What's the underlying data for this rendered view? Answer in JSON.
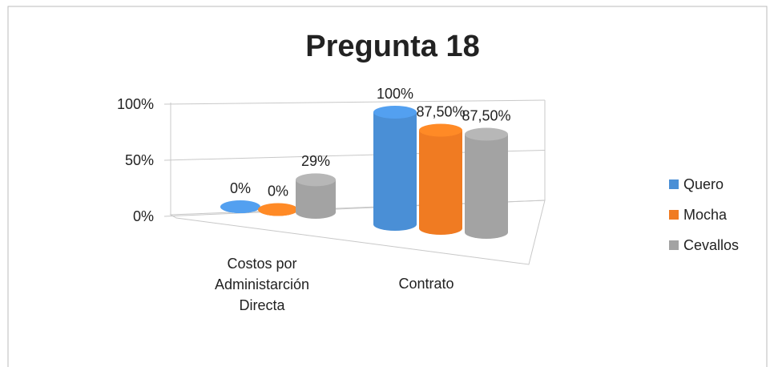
{
  "chart_data": {
    "type": "bar3d",
    "title": "Pregunta 18",
    "categories": [
      "Costos por Administarción Directa",
      "Contrato"
    ],
    "series": [
      {
        "name": "Quero",
        "color": "#4a8fd6",
        "values": [
          0,
          100
        ],
        "value_labels": [
          "0%",
          "100%"
        ]
      },
      {
        "name": "Mocha",
        "color": "#f07b22",
        "values": [
          0,
          87.5
        ],
        "value_labels": [
          "0%",
          "87,50%"
        ]
      },
      {
        "name": "Cevallos",
        "color": "#a3a3a3",
        "values": [
          29,
          87.5
        ],
        "value_labels": [
          "29%",
          "87,50%"
        ]
      }
    ],
    "ylim": [
      0,
      100
    ],
    "yticks": [
      {
        "value": 0,
        "label": "0%"
      },
      {
        "value": 50,
        "label": "50%"
      },
      {
        "value": 100,
        "label": "100%"
      }
    ],
    "grid": true,
    "legend": "right"
  }
}
